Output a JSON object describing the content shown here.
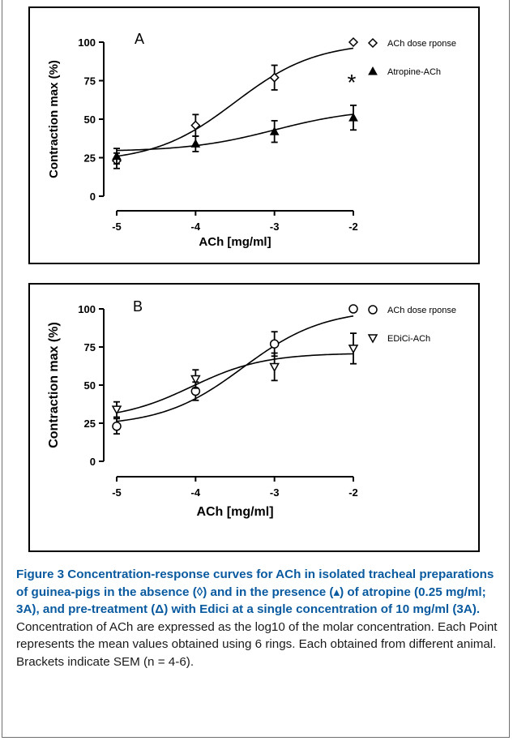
{
  "chart_data": [
    {
      "type": "line",
      "panel_label": "A",
      "ylabel": "Contraction max (%)",
      "xlabel": "ACh [mg/ml]",
      "x_ticks": [
        "-5",
        "-4",
        "-3",
        "-2"
      ],
      "y_ticks": [
        "0",
        "25",
        "50",
        "75",
        "100"
      ],
      "xlim": [
        -5,
        -2
      ],
      "ylim": [
        0,
        100
      ],
      "legend_position": "top-right",
      "annotation": "*",
      "series": [
        {
          "name": "ACh dose rponse",
          "marker": "diamond-open",
          "x": [
            -5,
            -4,
            -3,
            -2
          ],
          "y": [
            23,
            46,
            77,
            100
          ],
          "err": [
            5,
            7,
            8,
            0
          ],
          "curve": {
            "bottom": 22,
            "top": 100,
            "logec50": -3.5,
            "hill": 0.85
          }
        },
        {
          "name": "Atropine-ACh",
          "marker": "triangle-filled",
          "x": [
            -5,
            -4,
            -3,
            -2
          ],
          "y": [
            26,
            34,
            42,
            51
          ],
          "err": [
            5,
            5,
            7,
            8
          ],
          "curve": {
            "bottom": 29,
            "top": 57,
            "logec50": -3.0,
            "hill": 0.8
          }
        }
      ]
    },
    {
      "type": "line",
      "panel_label": "B",
      "ylabel": "Contraction max (%)",
      "xlabel": "ACh [mg/ml]",
      "x_ticks": [
        "-5",
        "-4",
        "-3",
        "-2"
      ],
      "y_ticks": [
        "0",
        "25",
        "50",
        "75",
        "100"
      ],
      "xlim": [
        -5,
        -2
      ],
      "ylim": [
        0,
        100
      ],
      "legend_position": "top-right",
      "series": [
        {
          "name": "ACh dose rponse",
          "marker": "circle-open",
          "x": [
            -5,
            -4,
            -3,
            -2
          ],
          "y": [
            23,
            46,
            77,
            100
          ],
          "err": [
            5,
            6,
            8,
            0
          ],
          "curve": {
            "bottom": 23,
            "top": 100,
            "logec50": -3.4,
            "hill": 0.85
          }
        },
        {
          "name": "EDiCi-ACh",
          "marker": "triangle-down-open",
          "x": [
            -5,
            -4,
            -3,
            -2
          ],
          "y": [
            34,
            54,
            62,
            74
          ],
          "err": [
            5,
            6,
            9,
            10
          ],
          "curve": {
            "bottom": 27,
            "top": 71,
            "logec50": -4.05,
            "hill": 0.95
          }
        }
      ]
    }
  ],
  "caption": {
    "bold": "Figure 3 Concentration-response curves for ACh in isolated tracheal preparations of guinea-pigs in the absence (◊) and in the presence (▴) of atropine (0.25 mg/ml; 3A), and pre-treatment (Δ) with Edici at a single concentration of 10 mg/ml (3A).",
    "text": " Concentration of ACh are expressed as the log10 of the molar concentration. Each Point represents the mean values obtained using 6 rings. Each obtained from different animal. Brackets indicate SEM (n = 4-6)."
  },
  "colors": {
    "ink": "#000000",
    "caption_bold": "#0a5aa0",
    "frame": "#6f6f6f"
  }
}
